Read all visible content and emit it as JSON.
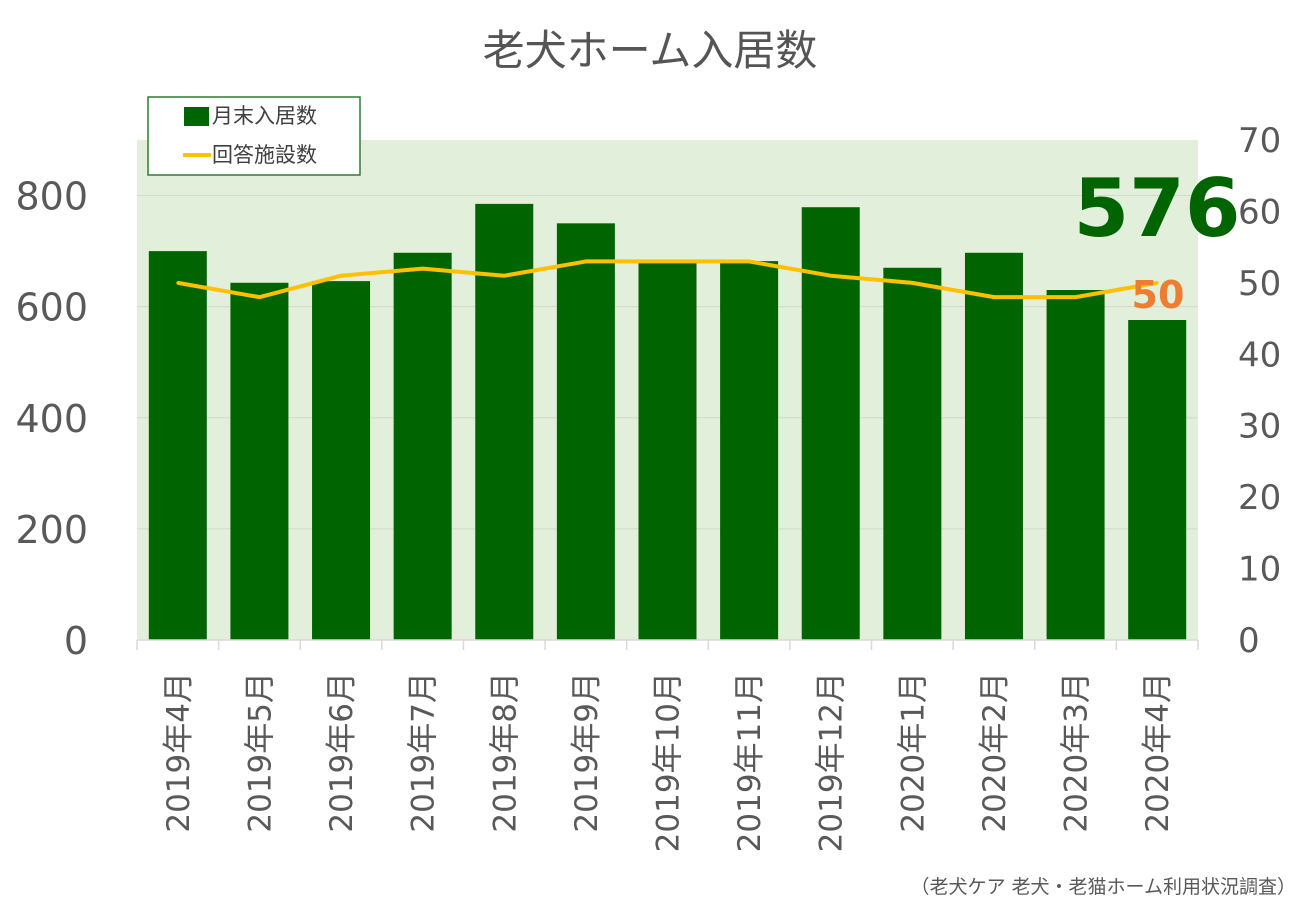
{
  "chart_data": {
    "type": "bar",
    "title": "老犬ホーム入居数",
    "categories": [
      "2019年4月",
      "2019年5月",
      "2019年6月",
      "2019年7月",
      "2019年8月",
      "2019年9月",
      "2019年10月",
      "2019年11月",
      "2019年12月",
      "2020年1月",
      "2020年2月",
      "2020年3月",
      "2020年4月"
    ],
    "series": [
      {
        "name": "月末入居数",
        "type": "bar",
        "axis": "left",
        "color": "#006400",
        "values": [
          700,
          643,
          646,
          697,
          785,
          750,
          682,
          682,
          779,
          670,
          697,
          630,
          576
        ]
      },
      {
        "name": "回答施設数",
        "type": "line",
        "axis": "right",
        "color": "#FFC000",
        "values": [
          50,
          48,
          51,
          52,
          51,
          53,
          53,
          53,
          51,
          50,
          48,
          48,
          50
        ]
      }
    ],
    "y_left": {
      "min": 0,
      "max": 900,
      "ticks": [
        0,
        200,
        400,
        600,
        800
      ]
    },
    "y_right": {
      "min": 0,
      "max": 70,
      "ticks": [
        0,
        10,
        20,
        30,
        40,
        50,
        60,
        70
      ]
    },
    "highlight_bar_label": "576",
    "highlight_line_label": "50",
    "legend_position": "top-left",
    "plot_background": "#E2EFDA",
    "grid": true,
    "source": "（老犬ケア 老犬・老猫ホーム利用状況調査）"
  }
}
